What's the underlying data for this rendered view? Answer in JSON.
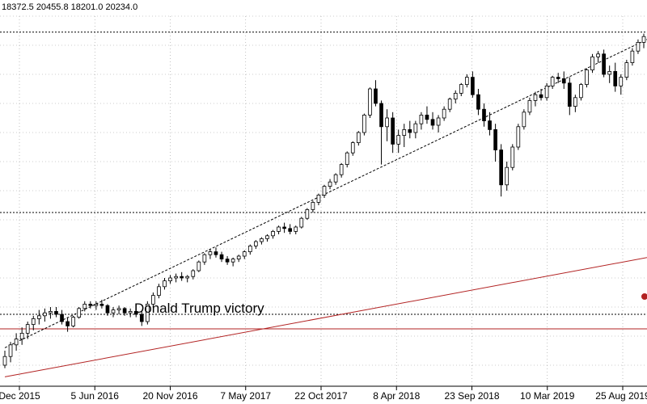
{
  "chart_data": {
    "type": "candlestick",
    "symbol_ohlc_readout": "18372.5 20455.8 18201.0 20234.0",
    "x_tick_labels": [
      "Dec 2015",
      "5 Jun 2016",
      "20 Nov 2016",
      "7 May 2017",
      "22 Oct 2017",
      "8 Apr 2018",
      "23 Sep 2018",
      "10 Mar 2019",
      "25 Aug 2019"
    ],
    "annotations": [
      {
        "text": "Donald Trump victory"
      }
    ],
    "trendlines": [
      {
        "style": "dotted",
        "color": "#000000",
        "from": {
          "x": "Dec 2015",
          "y": 16600
        },
        "to": {
          "x": "25 Aug 2019",
          "y": 27200
        }
      },
      {
        "style": "solid",
        "color": "#b22222",
        "from": {
          "x": "Dec 2015",
          "y": 15600
        },
        "to": {
          "x": "25 Aug 2019",
          "y": 19700
        }
      }
    ],
    "horizontal_levels": [
      {
        "style": "dotted",
        "color": "#000000",
        "y": 27450
      },
      {
        "style": "dotted",
        "color": "#000000",
        "y": 21250
      },
      {
        "style": "dotted",
        "color": "#000000",
        "y": 17750
      },
      {
        "style": "solid",
        "color": "#b22222",
        "y": 17250
      }
    ],
    "grid": true,
    "grid_style": "dotted",
    "ylim": [
      15500,
      28000
    ],
    "candles": [
      [
        16000,
        16500,
        15900,
        16300
      ],
      [
        16300,
        16800,
        16100,
        16700
      ],
      [
        16700,
        17100,
        16500,
        16900
      ],
      [
        16900,
        17300,
        16700,
        17100
      ],
      [
        17100,
        17500,
        16900,
        17400
      ],
      [
        17400,
        17700,
        17200,
        17600
      ],
      [
        17600,
        17900,
        17400,
        17700
      ],
      [
        17700,
        17950,
        17500,
        17800
      ],
      [
        17800,
        18000,
        17600,
        17850
      ],
      [
        17850,
        18000,
        17650,
        17750
      ],
      [
        17750,
        17900,
        17400,
        17500
      ],
      [
        17500,
        17650,
        17150,
        17350
      ],
      [
        17350,
        17700,
        17300,
        17650
      ],
      [
        17650,
        18000,
        17600,
        17950
      ],
      [
        17950,
        18200,
        17850,
        18100
      ],
      [
        18100,
        18200,
        17950,
        18050
      ],
      [
        18050,
        18200,
        17900,
        18100
      ],
      [
        18100,
        18250,
        17950,
        18050
      ],
      [
        18050,
        18100,
        17700,
        17800
      ],
      [
        17800,
        18000,
        17650,
        17900
      ],
      [
        17900,
        18050,
        17750,
        17950
      ],
      [
        17950,
        18000,
        17700,
        17800
      ],
      [
        17800,
        17950,
        17650,
        17850
      ],
      [
        17850,
        17950,
        17650,
        17750
      ],
      [
        17750,
        17850,
        17350,
        17500
      ],
      [
        17500,
        18200,
        17400,
        18100
      ],
      [
        18100,
        18500,
        18000,
        18400
      ],
      [
        18400,
        18800,
        18300,
        18700
      ],
      [
        18700,
        19000,
        18600,
        18900
      ],
      [
        18900,
        19100,
        18800,
        19000
      ],
      [
        19000,
        19150,
        18850,
        19050
      ],
      [
        19050,
        19200,
        18900,
        19000
      ],
      [
        19000,
        19100,
        18850,
        19050
      ],
      [
        19050,
        19300,
        18950,
        19250
      ],
      [
        19250,
        19600,
        19200,
        19550
      ],
      [
        19550,
        19850,
        19450,
        19800
      ],
      [
        19800,
        20000,
        19650,
        19900
      ],
      [
        19900,
        20050,
        19700,
        19800
      ],
      [
        19800,
        19900,
        19550,
        19650
      ],
      [
        19650,
        19750,
        19450,
        19550
      ],
      [
        19550,
        19700,
        19400,
        19650
      ],
      [
        19650,
        19800,
        19550,
        19750
      ],
      [
        19750,
        19950,
        19650,
        19900
      ],
      [
        19900,
        20150,
        19800,
        20100
      ],
      [
        20100,
        20300,
        20000,
        20250
      ],
      [
        20250,
        20400,
        20150,
        20350
      ],
      [
        20350,
        20500,
        20250,
        20450
      ],
      [
        20450,
        20650,
        20350,
        20600
      ],
      [
        20600,
        20800,
        20500,
        20750
      ],
      [
        20750,
        20900,
        20550,
        20700
      ],
      [
        20700,
        20850,
        20500,
        20600
      ],
      [
        20600,
        20800,
        20500,
        20750
      ],
      [
        20750,
        21100,
        20700,
        21050
      ],
      [
        21050,
        21400,
        21000,
        21350
      ],
      [
        21350,
        21650,
        21250,
        21600
      ],
      [
        21600,
        21900,
        21500,
        21850
      ],
      [
        21850,
        22200,
        21750,
        22150
      ],
      [
        22150,
        22400,
        22050,
        22300
      ],
      [
        22300,
        22600,
        22200,
        22550
      ],
      [
        22550,
        22950,
        22450,
        22900
      ],
      [
        22900,
        23350,
        22800,
        23300
      ],
      [
        23300,
        23700,
        23200,
        23650
      ],
      [
        23650,
        24050,
        23550,
        24000
      ],
      [
        24000,
        24650,
        23900,
        24600
      ],
      [
        24600,
        25550,
        24500,
        25500
      ],
      [
        25500,
        25800,
        24900,
        25000
      ],
      [
        25000,
        25100,
        22900,
        24200
      ],
      [
        24200,
        24800,
        23700,
        24500
      ],
      [
        24500,
        24700,
        23300,
        23600
      ],
      [
        23600,
        24100,
        23300,
        23900
      ],
      [
        23900,
        24300,
        23500,
        24100
      ],
      [
        24100,
        24400,
        23800,
        24000
      ],
      [
        24000,
        24400,
        23800,
        24300
      ],
      [
        24300,
        24700,
        24100,
        24600
      ],
      [
        24600,
        24900,
        24300,
        24450
      ],
      [
        24450,
        24700,
        24100,
        24250
      ],
      [
        24250,
        24600,
        24000,
        24500
      ],
      [
        24500,
        24900,
        24400,
        24800
      ],
      [
        24800,
        25200,
        24700,
        25150
      ],
      [
        25150,
        25450,
        25000,
        25350
      ],
      [
        25350,
        25700,
        25250,
        25650
      ],
      [
        25650,
        26000,
        25550,
        25900
      ],
      [
        25900,
        26100,
        25200,
        25300
      ],
      [
        25300,
        25500,
        24600,
        24800
      ],
      [
        24800,
        25000,
        24200,
        24400
      ],
      [
        24400,
        24700,
        23900,
        24100
      ],
      [
        24100,
        24300,
        23000,
        23400
      ],
      [
        23400,
        23600,
        21800,
        22200
      ],
      [
        22200,
        23000,
        22000,
        22800
      ],
      [
        22800,
        23600,
        22700,
        23500
      ],
      [
        23500,
        24300,
        23400,
        24200
      ],
      [
        24200,
        24800,
        24100,
        24700
      ],
      [
        24700,
        25200,
        24600,
        25100
      ],
      [
        25100,
        25400,
        24900,
        25300
      ],
      [
        25300,
        25500,
        25100,
        25200
      ],
      [
        25200,
        25700,
        25100,
        25600
      ],
      [
        25600,
        25950,
        25500,
        25900
      ],
      [
        25900,
        26050,
        25700,
        25850
      ],
      [
        25850,
        26100,
        25500,
        25700
      ],
      [
        25700,
        25900,
        24600,
        24900
      ],
      [
        24900,
        25300,
        24700,
        25200
      ],
      [
        25200,
        25700,
        25100,
        25650
      ],
      [
        25650,
        26200,
        25550,
        26150
      ],
      [
        26150,
        26700,
        26050,
        26600
      ],
      [
        26600,
        26800,
        26400,
        26700
      ],
      [
        26700,
        26850,
        25900,
        26000
      ],
      [
        26000,
        26300,
        25700,
        26100
      ],
      [
        26100,
        26400,
        25400,
        25600
      ],
      [
        25600,
        26000,
        25300,
        25900
      ],
      [
        25900,
        26500,
        25800,
        26400
      ],
      [
        26400,
        26900,
        26300,
        26800
      ],
      [
        26800,
        27200,
        26700,
        27100
      ],
      [
        27100,
        27400,
        26900,
        27300
      ]
    ]
  }
}
